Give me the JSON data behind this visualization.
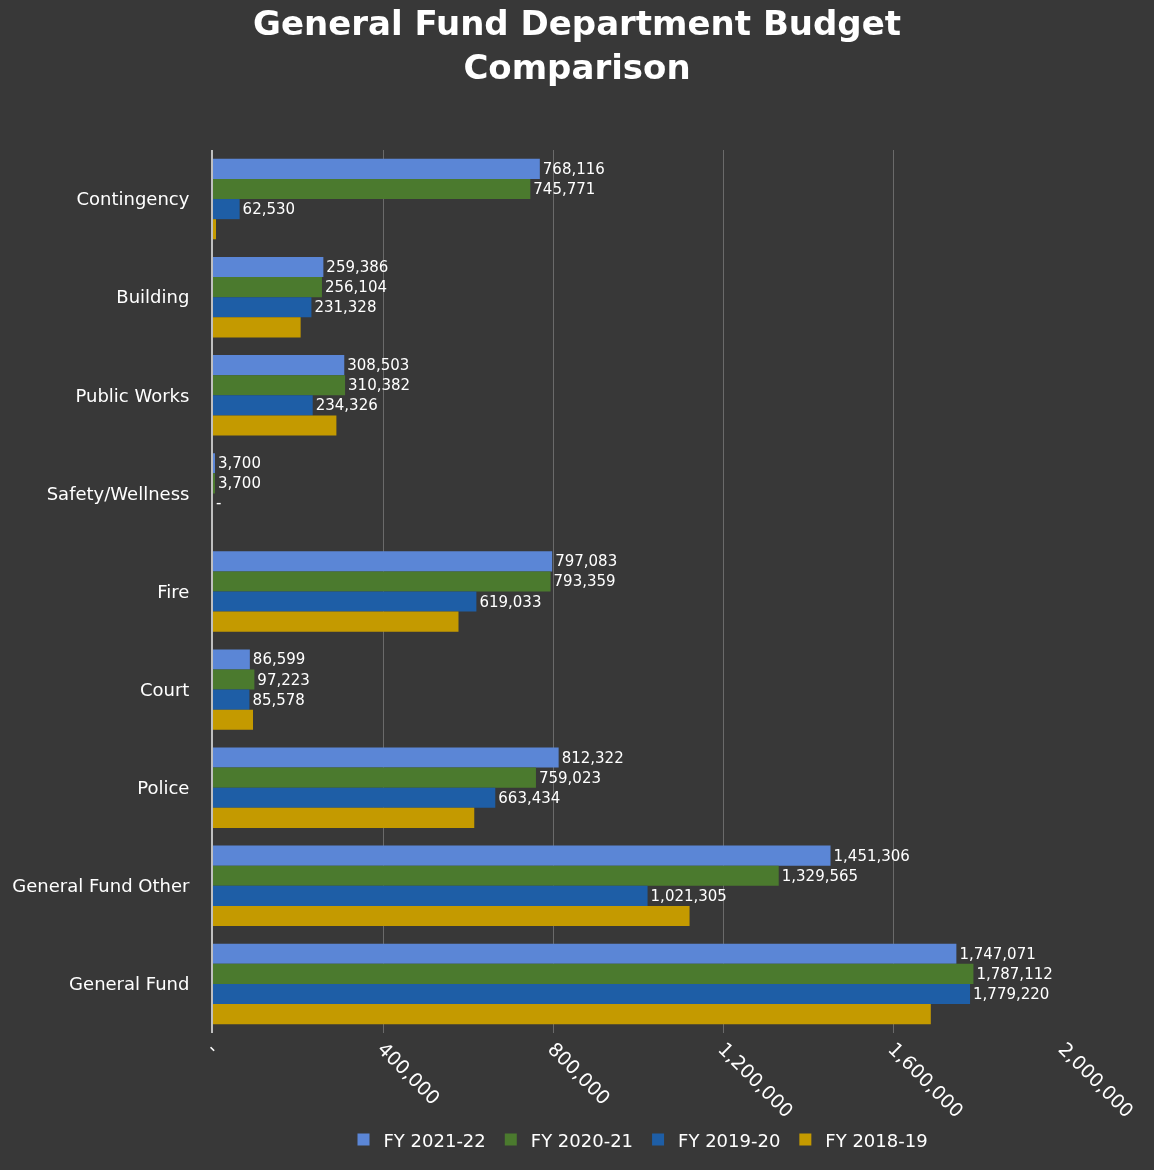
{
  "chart_data": {
    "type": "bar",
    "orientation": "horizontal",
    "title": "General Fund Department Budget Comparison",
    "categories": [
      "Contingency",
      "Building",
      "Public Works",
      "Safety/Wellness",
      "Fire",
      "Court",
      "Police",
      "General Fund Other",
      "General Fund"
    ],
    "series": [
      {
        "name": "FY 2021-22",
        "color": "#5b86d6",
        "values": [
          768116,
          259386,
          308503,
          3700,
          797083,
          86599,
          812322,
          1451306,
          1747071
        ],
        "value_labels": [
          "768,116",
          "259,386",
          "308,503",
          "3,700",
          "797,083",
          "86,599",
          "812,322",
          "1,451,306",
          "1,747,071"
        ]
      },
      {
        "name": "FY 2020-21",
        "color": "#4b7a2e",
        "values": [
          745771,
          256104,
          310382,
          3700,
          793359,
          97223,
          759023,
          1329565,
          1787112
        ],
        "value_labels": [
          "745,771",
          "256,104",
          "310,382",
          "3,700",
          "793,359",
          "97,223",
          "759,023",
          "1,329,565",
          "1,787,112"
        ]
      },
      {
        "name": "FY 2019-20",
        "color": "#1e5ea6",
        "values": [
          62530,
          231328,
          234326,
          0,
          619033,
          85578,
          663434,
          1021305,
          1779220
        ],
        "value_labels": [
          "62,530",
          "231,328",
          "234,326",
          "-",
          "619,033",
          "85,578",
          "663,434",
          "1,021,305",
          "1,779,220"
        ]
      },
      {
        "name": "FY 2018-19",
        "color": "#c49a00",
        "values": [
          7000,
          206000,
          290000,
          0,
          577000,
          94000,
          614000,
          1120000,
          1687000
        ]
      }
    ],
    "xlim": [
      0,
      2000000
    ],
    "xticks": [
      {
        "value": 0,
        "label": "-"
      },
      {
        "value": 400000,
        "label": "400,000"
      },
      {
        "value": 800000,
        "label": "800,000"
      },
      {
        "value": 1200000,
        "label": "1,200,000"
      },
      {
        "value": 1600000,
        "label": "1,600,000"
      },
      {
        "value": 2000000,
        "label": "2,000,000"
      }
    ],
    "grid": "x",
    "legend": "bottom"
  }
}
